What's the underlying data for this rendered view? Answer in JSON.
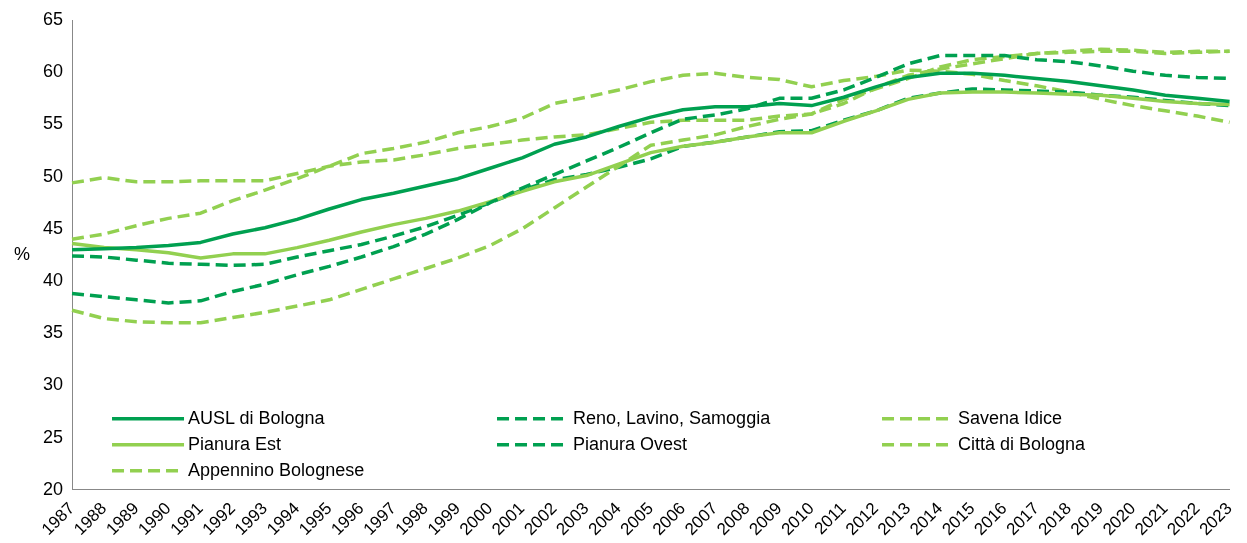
{
  "chart_data": {
    "type": "line",
    "ylabel": "%",
    "ylim": [
      20,
      65
    ],
    "yticks": [
      20,
      25,
      30,
      35,
      40,
      45,
      50,
      55,
      60,
      65
    ],
    "grid": false,
    "legend": "bottom left",
    "marker": "none",
    "categories": [
      "1987",
      "1988",
      "1989",
      "1990",
      "1991",
      "1992",
      "1993",
      "1994",
      "1995",
      "1996",
      "1997",
      "1998",
      "1999",
      "2000",
      "2001",
      "2002",
      "2003",
      "2004",
      "2005",
      "2006",
      "2007",
      "2008",
      "2009",
      "2010",
      "2011",
      "2012",
      "2013",
      "2014",
      "2015",
      "2016",
      "2017",
      "2018",
      "2019",
      "2020",
      "2021",
      "2022",
      "2023"
    ],
    "series": [
      {
        "name": "AUSL di Bologna",
        "color": "#00a050",
        "line_style": "solid",
        "values": [
          43.0,
          43.1,
          43.2,
          43.4,
          43.7,
          44.5,
          45.1,
          45.9,
          46.9,
          47.8,
          48.4,
          49.1,
          49.8,
          50.8,
          51.8,
          53.1,
          53.8,
          54.8,
          55.7,
          56.4,
          56.7,
          56.7,
          57.0,
          56.8,
          57.6,
          58.6,
          59.5,
          59.9,
          59.9,
          59.7,
          59.4,
          59.1,
          58.7,
          58.3,
          57.8,
          57.5,
          57.2
        ]
      },
      {
        "name": "Reno, Lavino, Samoggia",
        "color": "#00a050",
        "line_style": "dashed",
        "values": [
          38.8,
          38.5,
          38.2,
          37.9,
          38.1,
          39.0,
          39.7,
          40.6,
          41.4,
          42.3,
          43.3,
          44.5,
          45.9,
          47.5,
          48.9,
          50.2,
          51.5,
          52.8,
          54.2,
          55.5,
          55.9,
          56.5,
          57.5,
          57.5,
          58.3,
          59.5,
          60.8,
          61.6,
          61.6,
          61.6,
          61.2,
          61.0,
          60.6,
          60.1,
          59.7,
          59.5,
          59.4
        ]
      },
      {
        "name": "Savena Idice",
        "color": "#92d050",
        "line_style": "dashed",
        "values": [
          37.2,
          36.4,
          36.1,
          36.0,
          36.0,
          36.5,
          37.0,
          37.6,
          38.2,
          39.2,
          40.2,
          41.2,
          42.2,
          43.4,
          45.0,
          47.0,
          49.0,
          51.0,
          53.0,
          53.5,
          54.0,
          54.8,
          55.5,
          56.0,
          57.0,
          58.5,
          59.7,
          60.3,
          60.8,
          61.3,
          61.8,
          62.0,
          62.2,
          62.1,
          61.9,
          62.0,
          62.0
        ]
      },
      {
        "name": "Pianura Est",
        "color": "#92d050",
        "line_style": "solid",
        "values": [
          43.6,
          43.2,
          43.0,
          42.7,
          42.2,
          42.6,
          42.6,
          43.2,
          43.9,
          44.7,
          45.4,
          46.0,
          46.7,
          47.6,
          48.6,
          49.5,
          50.1,
          51.2,
          52.3,
          52.9,
          53.3,
          53.8,
          54.2,
          54.2,
          55.3,
          56.3,
          57.4,
          58.0,
          58.1,
          58.1,
          58.0,
          57.9,
          57.8,
          57.5,
          57.2,
          57.0,
          56.9
        ]
      },
      {
        "name": "Pianura Ovest",
        "color": "#00a050",
        "line_style": "dashed",
        "values": [
          42.4,
          42.3,
          42.0,
          41.7,
          41.6,
          41.5,
          41.6,
          42.3,
          42.9,
          43.5,
          44.3,
          45.2,
          46.3,
          47.5,
          48.7,
          49.7,
          50.2,
          50.9,
          51.7,
          52.9,
          53.3,
          53.8,
          54.3,
          54.4,
          55.4,
          56.3,
          57.5,
          58.0,
          58.4,
          58.3,
          58.2,
          58.1,
          57.8,
          57.6,
          57.3,
          57.0,
          56.8
        ]
      },
      {
        "name": "Città di Bologna",
        "color": "#92d050",
        "line_style": "dashed",
        "values": [
          44.0,
          44.5,
          45.3,
          46.0,
          46.5,
          47.7,
          48.7,
          49.8,
          51.0,
          52.2,
          52.7,
          53.3,
          54.2,
          54.8,
          55.6,
          57.0,
          57.6,
          58.3,
          59.1,
          59.7,
          59.9,
          59.5,
          59.3,
          58.6,
          59.2,
          59.6,
          60.2,
          60.1,
          59.8,
          59.2,
          58.7,
          58.1,
          57.4,
          56.8,
          56.3,
          55.8,
          55.2
        ]
      },
      {
        "name": "Appennino Bolognese",
        "color": "#92d050",
        "line_style": "dashed",
        "values": [
          49.4,
          49.9,
          49.5,
          49.5,
          49.6,
          49.6,
          49.6,
          50.3,
          51.0,
          51.4,
          51.6,
          52.1,
          52.7,
          53.1,
          53.5,
          53.8,
          54.0,
          54.6,
          55.2,
          55.4,
          55.4,
          55.4,
          55.8,
          56.0,
          57.4,
          58.4,
          59.4,
          60.5,
          61.2,
          61.5,
          61.8,
          61.9,
          62.0,
          62.0,
          61.8,
          61.9,
          62.0
        ]
      }
    ]
  }
}
